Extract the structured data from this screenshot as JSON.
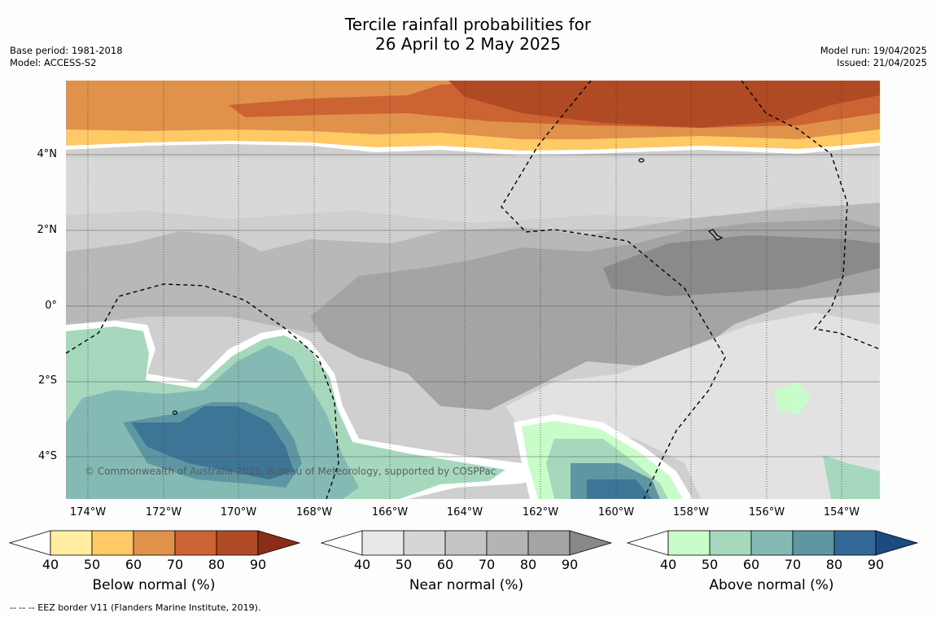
{
  "title": {
    "line1": "Tercile rainfall probabilities for",
    "line2": "26 April to 2 May 2025"
  },
  "meta_left": {
    "base_period": "Base period: 1981-2018",
    "model": "Model: ACCESS-S2"
  },
  "meta_right": {
    "model_run": "Model run: 19/04/2025",
    "issued": "Issued: 21/04/2025"
  },
  "lat_labels": [
    "4°N",
    "2°N",
    "0°",
    "2°S",
    "4°S"
  ],
  "lon_labels": [
    "174°W",
    "172°W",
    "170°W",
    "168°W",
    "166°W",
    "164°W",
    "162°W",
    "160°W",
    "158°W",
    "156°W",
    "154°W"
  ],
  "copyright": "© Commonwealth of Australia 2025, Bureau of Meteorology, supported by COSPPac",
  "colorbars": [
    {
      "name": "below",
      "label": "Below normal (%)",
      "ticks": [
        "40",
        "50",
        "60",
        "70",
        "80",
        "90"
      ],
      "colors": [
        "#ffeea0",
        "#ffc966",
        "#e0924a",
        "#cc6333",
        "#b04a25",
        "#8a2c18"
      ]
    },
    {
      "name": "near",
      "label": "Near normal (%)",
      "ticks": [
        "40",
        "50",
        "60",
        "70",
        "80",
        "90"
      ],
      "colors": [
        "#e8e8e8",
        "#d6d6d6",
        "#c4c4c4",
        "#b4b4b4",
        "#a4a4a4",
        "#888888"
      ]
    },
    {
      "name": "above",
      "label": "Above normal (%)",
      "ticks": [
        "40",
        "50",
        "60",
        "70",
        "80",
        "90"
      ],
      "colors": [
        "#c8fcc8",
        "#a5d8bd",
        "#84bab3",
        "#5e97a3",
        "#336796",
        "#1a4c80"
      ]
    }
  ],
  "footer": "-- -- -- EEZ border V11 (Flanders Marine Institute, 2019)."
}
